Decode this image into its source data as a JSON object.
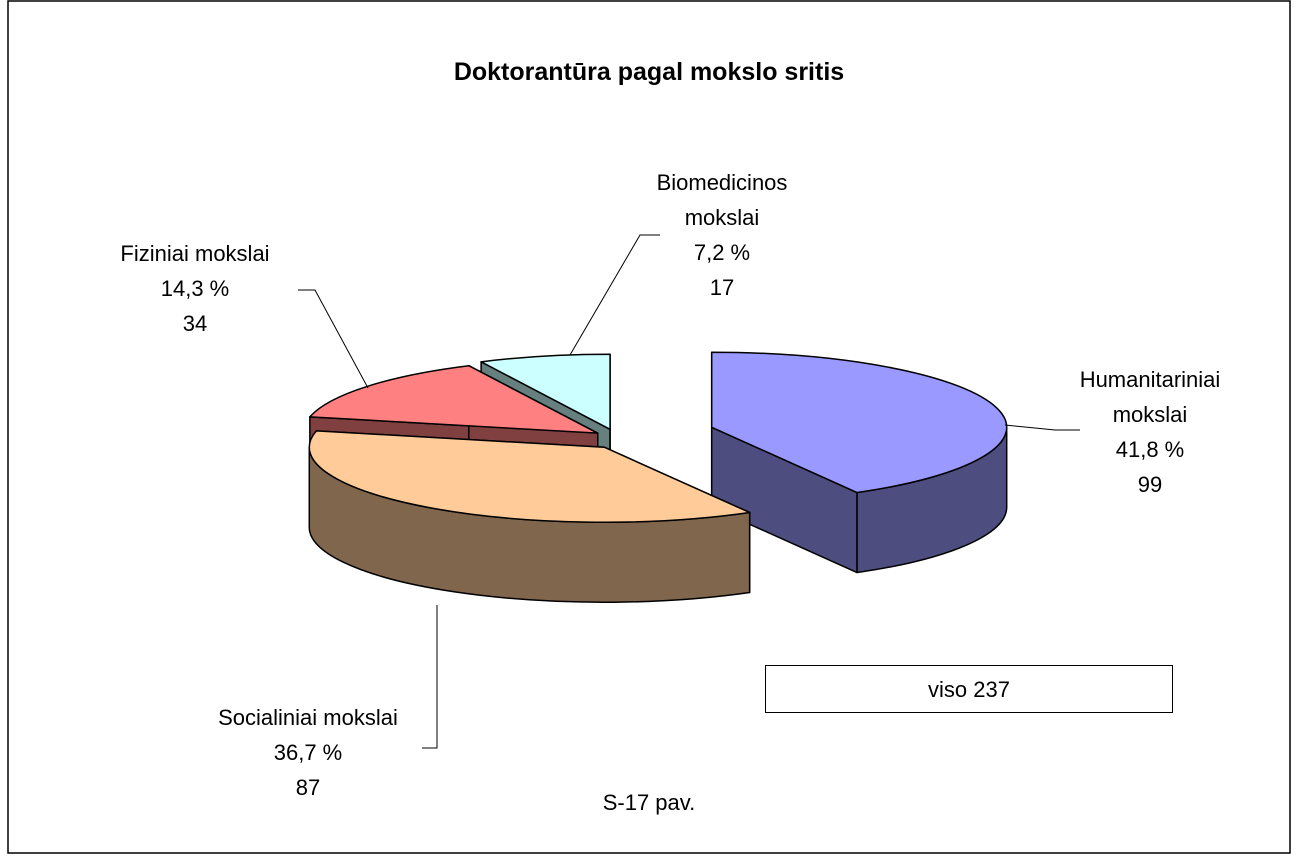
{
  "chart_data": {
    "type": "pie",
    "title": "Doktorantūra pagal mokslo sritis",
    "categories": [
      "Humanitariniai mokslai",
      "Socialiniai mokslai",
      "Fiziniai mokslai",
      "Biomedicinos mokslai"
    ],
    "values": [
      41.8,
      36.7,
      14.3,
      7.2
    ],
    "value_labels": [
      "41,8 %",
      "36,7 %",
      "14,3 %",
      "7,2 %"
    ],
    "counts": [
      99,
      87,
      34,
      17
    ],
    "colors": [
      "#9999ff",
      "#ffcc99",
      "#ff8080",
      "#ccffff"
    ],
    "total_label": "viso 237",
    "caption": "S-17 pav."
  }
}
